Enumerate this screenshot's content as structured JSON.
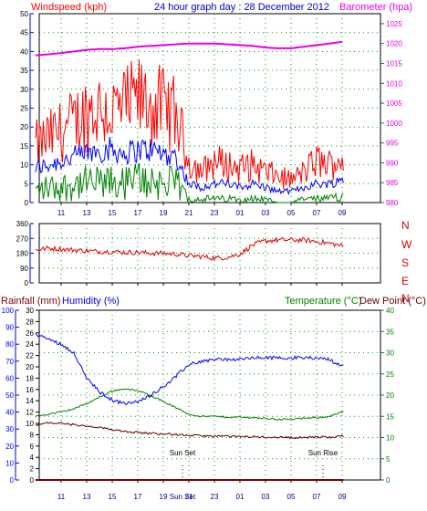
{
  "header": {
    "left_label": "Windspeed (kph)",
    "title": "24 hour graph day : 28 December 2012",
    "right_label": "Barometer (hpa)"
  },
  "labels": {
    "temperature": "Temperature (°C)",
    "dew_point": "Dew Point (°C)",
    "rainfall": "Rainfall (mm)",
    "humidity": "Humidity (%)",
    "sun_set": "Sun Set",
    "sun_rise": "Sun Rise"
  },
  "colors": {
    "wind_gust": "#ff0000",
    "wind_avg": "#0000ff",
    "wind_low": "#008000",
    "barometer": "#e600e6",
    "direction": "#dd0000",
    "humidity": "#0000ff",
    "temperature": "#008000",
    "dew_point": "#600000",
    "rain": "#800000",
    "axis_left": "#0000cc",
    "axis_right": "#008080",
    "grid": "#00a000"
  },
  "chart_data": [
    {
      "type": "line",
      "name": "wind-panel",
      "x_ticks": [
        "11",
        "13",
        "15",
        "17",
        "19",
        "21",
        "23",
        "01",
        "03",
        "05",
        "07",
        "09"
      ],
      "y_left_ticks": [
        0,
        5,
        10,
        15,
        20,
        25,
        30,
        35,
        40,
        45,
        50
      ],
      "y_left_lim": [
        0,
        50
      ],
      "y_right_ticks": [
        980,
        985,
        990,
        995,
        1000,
        1005,
        1010,
        1015,
        1020,
        1025
      ],
      "y_right_lim": [
        980,
        1027.5
      ],
      "x_hours": [
        9.0,
        10.0,
        11.0,
        12.0,
        13.0,
        14.0,
        15.0,
        16.0,
        17.0,
        18.0,
        19.0,
        20.0,
        21.0,
        22.0,
        23.0,
        24.0,
        25.0,
        26.0,
        27.0,
        28.0,
        29.0,
        30.0,
        31.0,
        32.0,
        33.0
      ],
      "series": [
        {
          "values": [
            15,
            17,
            19,
            21,
            24,
            25,
            24,
            25,
            27,
            26,
            25,
            23,
            11,
            8,
            11,
            10,
            9,
            10,
            8,
            7,
            6,
            8,
            11,
            10,
            12
          ]
        },
        {
          "values": [
            9,
            10,
            11,
            12,
            13,
            14,
            14,
            13,
            14,
            14,
            13,
            12,
            5,
            4,
            5,
            5,
            4,
            5,
            4,
            3,
            3,
            4,
            5,
            5,
            6
          ]
        },
        {
          "values": [
            3,
            4,
            4,
            5,
            5,
            5,
            5,
            5,
            6,
            6,
            5,
            5,
            1,
            1,
            1,
            1,
            1,
            1,
            1,
            0,
            0,
            1,
            1,
            1,
            2
          ]
        },
        {
          "name": "Barometer (hpa)",
          "axis": "right",
          "values": [
            1017.0,
            1017.3,
            1017.6,
            1018.0,
            1018.4,
            1018.6,
            1018.6,
            1018.8,
            1019.2,
            1019.4,
            1019.6,
            1019.8,
            1020.0,
            1020.0,
            1020.0,
            1019.8,
            1019.6,
            1019.4,
            1019.0,
            1018.8,
            1018.8,
            1019.2,
            1019.6,
            1020.0,
            1020.4
          ]
        }
      ]
    },
    {
      "type": "scatter",
      "name": "direction-panel",
      "y_ticks": [
        0,
        90,
        180,
        270,
        360
      ],
      "y_lim": [
        0,
        360
      ],
      "y_compass": [
        "N",
        "W",
        "S",
        "E",
        "N"
      ],
      "x_hours": [
        9.0,
        10.0,
        11.0,
        12.0,
        13.0,
        14.0,
        15.0,
        16.0,
        17.0,
        18.0,
        19.0,
        20.0,
        21.0,
        22.0,
        23.0,
        24.0,
        25.0,
        26.0,
        27.0,
        28.0,
        29.0,
        30.0,
        31.0,
        32.0,
        33.0
      ],
      "series": [
        {
          "values": [
            200,
            210,
            205,
            200,
            195,
            190,
            190,
            185,
            185,
            180,
            180,
            175,
            165,
            160,
            150,
            155,
            175,
            230,
            255,
            260,
            260,
            260,
            250,
            240,
            225
          ]
        }
      ]
    },
    {
      "type": "line",
      "name": "temp-humidity-panel",
      "x_ticks": [
        "11",
        "13",
        "15",
        "17",
        "19",
        "21",
        "23",
        "01",
        "03",
        "05",
        "07",
        "09"
      ],
      "y_humidity_ticks": [
        0,
        10,
        20,
        30,
        40,
        50,
        60,
        70,
        80,
        90,
        100
      ],
      "y_humidity_lim": [
        0,
        100
      ],
      "y_rain_ticks": [
        0,
        2,
        4,
        6,
        8,
        10,
        12,
        14,
        16,
        18,
        20,
        22,
        24,
        26,
        28,
        30
      ],
      "y_rain_lim": [
        0,
        30
      ],
      "y_temp_ticks": [
        0,
        5,
        10,
        15,
        20,
        25,
        30,
        35,
        40
      ],
      "y_temp_lim": [
        0,
        40
      ],
      "x_hours": [
        9.0,
        10.0,
        11.0,
        12.0,
        13.0,
        14.0,
        15.0,
        16.0,
        17.0,
        18.0,
        19.0,
        20.0,
        21.0,
        22.0,
        23.0,
        24.0,
        25.0,
        26.0,
        27.0,
        28.0,
        29.0,
        30.0,
        31.0,
        32.0,
        33.0
      ],
      "sun_set_hour": 20.5,
      "sun_rise_hour": 31.5,
      "series": [
        {
          "name": "Humidity (%)",
          "axis": "humidity",
          "values": [
            86,
            83,
            80,
            75,
            60,
            52,
            47,
            45,
            46,
            50,
            55,
            61,
            68,
            70,
            71,
            71,
            71,
            72,
            72,
            72,
            72,
            72,
            72,
            71,
            67
          ]
        },
        {
          "name": "Temperature (°C)",
          "axis": "temp",
          "values": [
            15.0,
            15.5,
            16.0,
            16.8,
            18.0,
            19.5,
            21.0,
            21.5,
            21.0,
            20.0,
            18.5,
            17.0,
            15.5,
            15.0,
            15.0,
            14.8,
            14.8,
            14.7,
            14.5,
            14.3,
            14.3,
            14.5,
            14.7,
            15.0,
            16.0
          ]
        },
        {
          "name": "Dew Point (°C)",
          "axis": "temp",
          "values": [
            13.0,
            13.4,
            13.4,
            13.0,
            12.6,
            12.3,
            11.9,
            11.5,
            11.2,
            11.0,
            10.9,
            10.7,
            10.5,
            10.4,
            10.3,
            10.3,
            10.2,
            10.2,
            10.1,
            10.1,
            10.0,
            10.0,
            10.1,
            10.1,
            10.3
          ]
        },
        {
          "name": "Rainfall (mm)",
          "axis": "rain",
          "values": [
            0,
            0,
            0,
            0,
            0,
            0,
            0,
            0,
            0,
            0,
            0,
            0,
            0,
            0,
            0,
            0,
            0,
            0,
            0,
            0,
            0,
            0,
            0,
            0,
            0
          ]
        }
      ]
    }
  ]
}
